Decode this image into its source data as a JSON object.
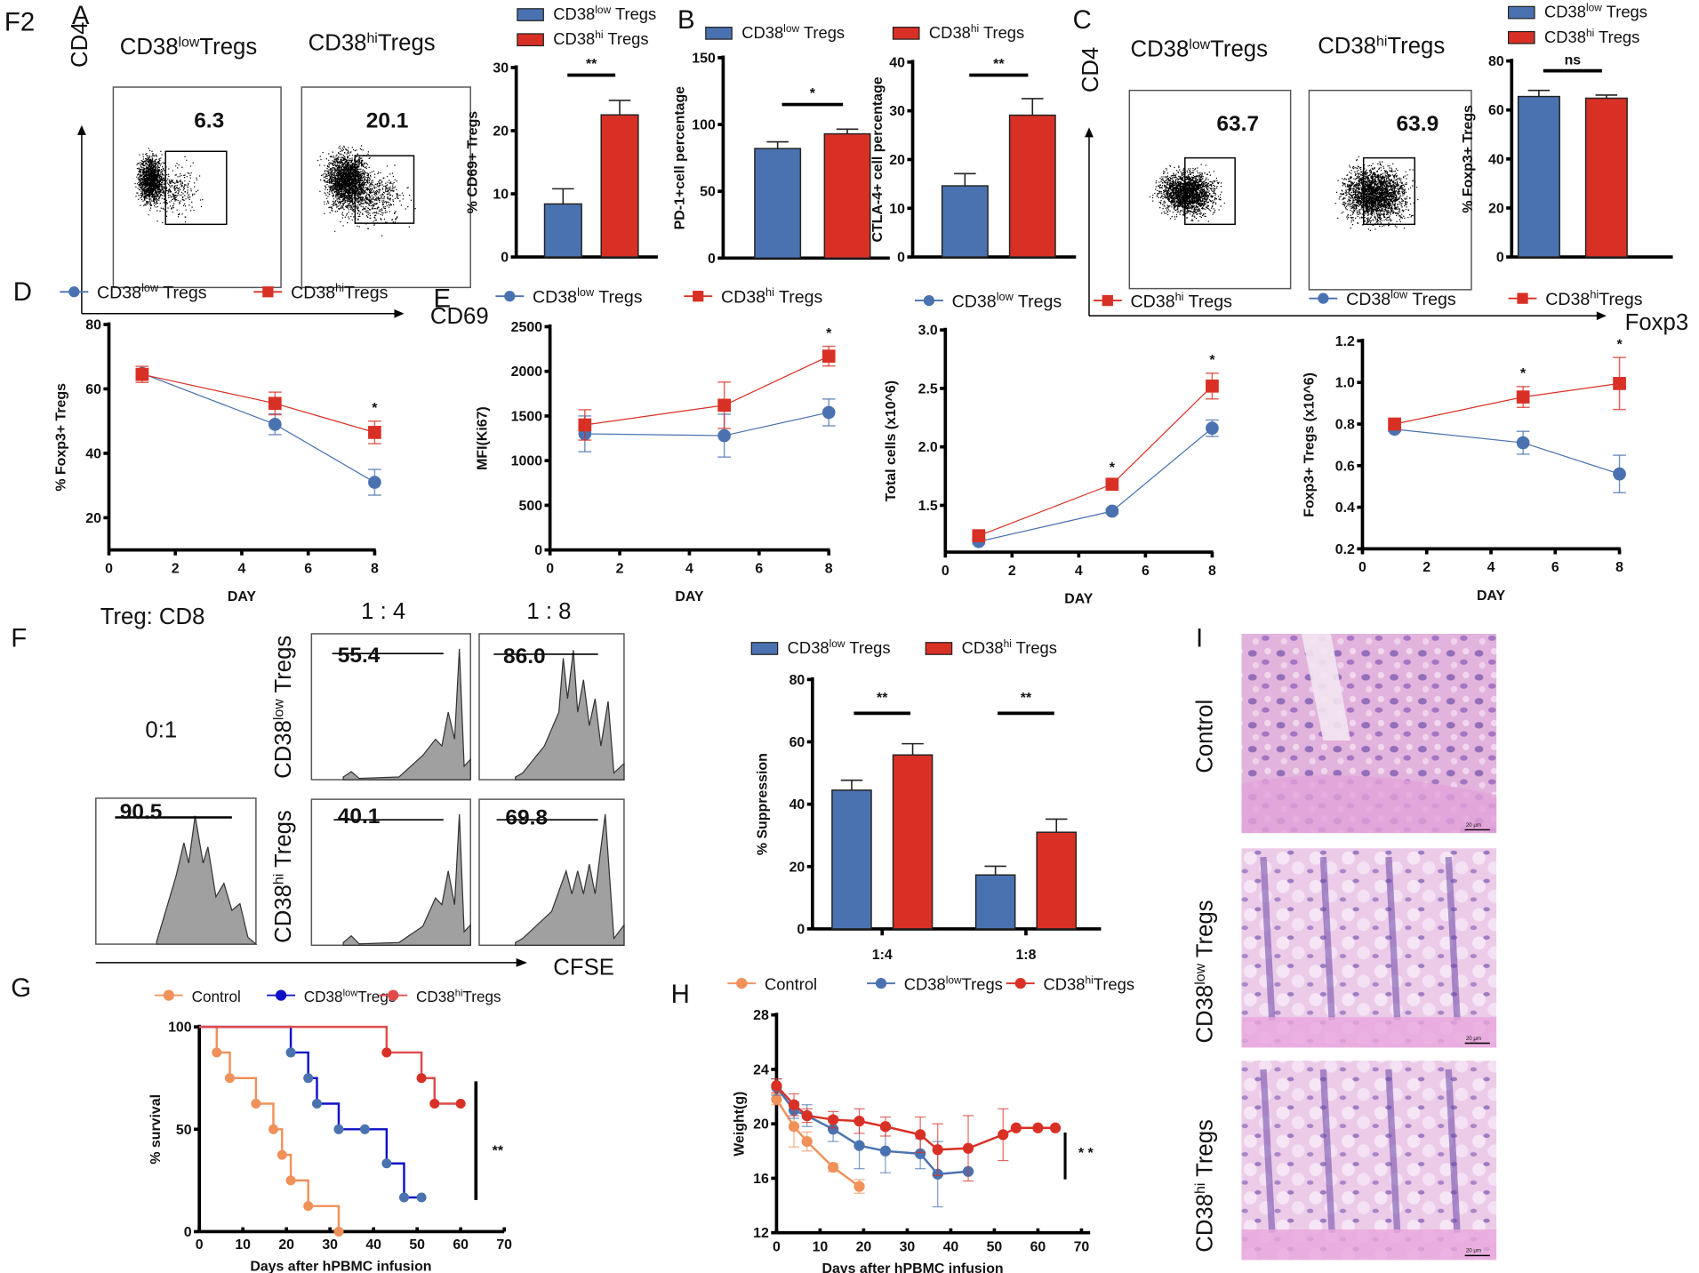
{
  "figure_label": "F2",
  "colors": {
    "low": "#4a72b0",
    "hi": "#d93025",
    "control": "#f0915a",
    "low_survival": "#1010c8",
    "hi_survival": "#e04a4a",
    "histogram_fill": "#a0a0a0",
    "he_background": "#e6b9e0",
    "he_nuclei": "#6a4aa8"
  },
  "panels": {
    "A": {
      "label": "A",
      "flow_titles": [
        "CD38lowTregs",
        "CD38hiTregs"
      ],
      "flow_title_parts": [
        {
          "base": "CD38",
          "sup": "low",
          "tail": "Tregs"
        },
        {
          "base": "CD38",
          "sup": "hi",
          "tail": "Tregs"
        }
      ],
      "gate_values": [
        "6.3",
        "20.1"
      ],
      "y_axis": "CD4",
      "x_axis": "CD69"
    },
    "B": {
      "label": "B"
    },
    "C": {
      "label": "C",
      "flow_title_parts": [
        {
          "base": "CD38",
          "sup": "low",
          "tail": "Tregs"
        },
        {
          "base": "CD38",
          "sup": "hi",
          "tail": "Tregs"
        }
      ],
      "gate_values": [
        "63.7",
        "63.9"
      ],
      "y_axis": "CD4",
      "x_axis": "Foxp3"
    },
    "D": {
      "label": "D"
    },
    "E": {
      "label": "E"
    },
    "F": {
      "label": "F",
      "ratio_header": "Treg:  CD8",
      "ratios": [
        "1 : 4",
        "1 : 8"
      ],
      "baseline_ratio": "0:1",
      "row_labels": [
        {
          "base": "CD38",
          "sup": "low",
          "tail": " Tregs"
        },
        {
          "base": "CD38",
          "sup": "hi",
          "tail": " Tregs"
        }
      ],
      "histogram_values": {
        "baseline": "90.5",
        "low_1_4": "55.4",
        "low_1_8": "86.0",
        "hi_1_4": "40.1",
        "hi_1_8": "69.8"
      },
      "x_axis": "CFSE"
    },
    "G": {
      "label": "G"
    },
    "H": {
      "label": "H"
    },
    "I": {
      "label": "I",
      "rows": [
        {
          "base": "Control",
          "sup": "",
          "tail": ""
        },
        {
          "base": "CD38",
          "sup": "low",
          "tail": " Tregs"
        },
        {
          "base": "CD38",
          "sup": "hi",
          "tail": " Tregs"
        }
      ],
      "scale_bar": "20 μm"
    }
  },
  "chart_data": [
    {
      "id": "A_cd69",
      "type": "bar",
      "categories": [
        "CD38low Tregs",
        "CD38hi Tregs"
      ],
      "legend": [
        "CD38low Tregs",
        "CD38hi Tregs"
      ],
      "values": [
        8.4,
        22.5
      ],
      "errors": [
        2.4,
        2.3
      ],
      "ylabel": "% CD69+ Tregs",
      "ylim": [
        0,
        30
      ],
      "yticks": [
        0,
        10,
        20,
        30
      ],
      "significance": "**"
    },
    {
      "id": "B_pd1",
      "type": "bar",
      "categories": [
        "CD38low Tregs",
        "CD38hi Tregs"
      ],
      "legend": [
        "CD38low Tregs",
        "CD38hi Tregs"
      ],
      "values": [
        82,
        93
      ],
      "errors": [
        5,
        3.5
      ],
      "ylabel": "PD-1+cell percentage",
      "ylim": [
        0,
        150
      ],
      "yticks": [
        0,
        50,
        100,
        150
      ],
      "significance": "*"
    },
    {
      "id": "B_ctla4",
      "type": "bar",
      "categories": [
        "CD38low Tregs",
        "CD38hi Tregs"
      ],
      "values": [
        14.6,
        29.1
      ],
      "errors": [
        2.5,
        3.4
      ],
      "ylabel": "CTLA-4+ cell percentage",
      "ylim": [
        0,
        40
      ],
      "yticks": [
        0,
        10,
        20,
        30,
        40
      ],
      "significance": "**"
    },
    {
      "id": "C_foxp3",
      "type": "bar",
      "categories": [
        "CD38low Tregs",
        "CD38hi Tregs"
      ],
      "legend": [
        "CD38low Tregs",
        "CD38hi Tregs"
      ],
      "values": [
        65.5,
        64.8
      ],
      "errors": [
        2.5,
        1.3
      ],
      "ylabel": "% Foxp3+ Tregs",
      "ylim": [
        0,
        80
      ],
      "yticks": [
        0,
        20,
        40,
        60,
        80
      ],
      "significance": "ns"
    },
    {
      "id": "D_foxp3_time",
      "type": "line",
      "x": [
        1,
        5,
        8
      ],
      "series": [
        {
          "name": "CD38low Tregs",
          "values": [
            64.8,
            49,
            31
          ],
          "errors": [
            1.5,
            3.2,
            4
          ]
        },
        {
          "name": "CD38hi Tregs",
          "values": [
            64.5,
            55.5,
            46.5
          ],
          "errors": [
            2.5,
            3.5,
            3.5
          ]
        }
      ],
      "xlabel": "DAY",
      "ylabel": "% Foxp3+ Tregs",
      "xlim": [
        0,
        8
      ],
      "ylim": [
        10,
        80
      ],
      "xticks": [
        0,
        2,
        4,
        6,
        8
      ],
      "yticks": [
        20,
        40,
        60,
        80
      ],
      "annotations": [
        {
          "x": 8,
          "text": "*"
        }
      ]
    },
    {
      "id": "E_ki67",
      "type": "line",
      "x": [
        1,
        5,
        8
      ],
      "series": [
        {
          "name": "CD38low Tregs",
          "values": [
            1300,
            1280,
            1540
          ],
          "errors": [
            200,
            240,
            150
          ]
        },
        {
          "name": "CD38hi Tregs",
          "values": [
            1400,
            1620,
            2170
          ],
          "errors": [
            170,
            260,
            110
          ]
        }
      ],
      "xlabel": "DAY",
      "ylabel": "MFI(Ki67)",
      "xlim": [
        0,
        8
      ],
      "ylim": [
        0,
        2500
      ],
      "xticks": [
        0,
        2,
        4,
        6,
        8
      ],
      "yticks": [
        0,
        500,
        1000,
        1500,
        2000,
        2500
      ],
      "annotations": [
        {
          "x": 8,
          "text": "*"
        }
      ]
    },
    {
      "id": "E_total_cells",
      "type": "line",
      "x": [
        1,
        5,
        8
      ],
      "series": [
        {
          "name": "CD38low Tregs",
          "values": [
            1.19,
            1.45,
            2.16
          ],
          "errors": [
            0.02,
            0.02,
            0.07
          ]
        },
        {
          "name": "CD38hi Tregs",
          "values": [
            1.24,
            1.68,
            2.52
          ],
          "errors": [
            0.02,
            0.03,
            0.11
          ]
        }
      ],
      "xlabel": "DAY",
      "ylabel": "Total cells (x10^6)",
      "xlim": [
        0,
        8
      ],
      "ylim": [
        1.1,
        3.0
      ],
      "xticks": [
        0,
        2,
        4,
        6,
        8
      ],
      "yticks": [
        1.5,
        2.0,
        2.5,
        3.0
      ],
      "annotations": [
        {
          "x": 5,
          "text": "*"
        },
        {
          "x": 8,
          "text": "*"
        }
      ]
    },
    {
      "id": "E_foxp3_cells",
      "type": "line",
      "x": [
        1,
        5,
        8
      ],
      "series": [
        {
          "name": "CD38low Tregs",
          "values": [
            0.775,
            0.71,
            0.56
          ],
          "errors": [
            0.01,
            0.055,
            0.09
          ]
        },
        {
          "name": "CD38hi Tregs",
          "values": [
            0.8,
            0.93,
            0.995
          ],
          "errors": [
            0.01,
            0.05,
            0.125
          ]
        }
      ],
      "xlabel": "DAY",
      "ylabel": "Foxp3+ Tregs (x10^6)",
      "xlim": [
        0,
        8
      ],
      "ylim": [
        0.2,
        1.2
      ],
      "xticks": [
        0,
        2,
        4,
        6,
        8
      ],
      "yticks": [
        0.2,
        0.4,
        0.6,
        0.8,
        1.0,
        1.2
      ],
      "annotations": [
        {
          "x": 5,
          "text": "*"
        },
        {
          "x": 8,
          "text": "*"
        }
      ]
    },
    {
      "id": "F_suppression",
      "type": "bar",
      "categories": [
        "1:4",
        "1:8"
      ],
      "series": [
        {
          "name": "CD38low Tregs",
          "values": [
            44.5,
            17.3
          ],
          "errors": [
            3.2,
            2.8
          ]
        },
        {
          "name": "CD38hi Tregs",
          "values": [
            55.8,
            31
          ],
          "errors": [
            3.6,
            4.2
          ]
        }
      ],
      "ylabel": "% Suppression",
      "ylim": [
        0,
        80
      ],
      "yticks": [
        0,
        20,
        40,
        60,
        80
      ],
      "significance": [
        "**",
        "**"
      ]
    },
    {
      "id": "G_survival",
      "type": "line",
      "step": true,
      "series": [
        {
          "name": "Control",
          "x": [
            0,
            4,
            7,
            13,
            17,
            19,
            21,
            25,
            32
          ],
          "values": [
            100,
            87.5,
            75,
            62.5,
            50,
            37.5,
            25,
            12.5,
            0
          ]
        },
        {
          "name": "CD38lowTregs",
          "x": [
            0,
            21,
            25,
            27,
            32,
            38,
            43,
            47,
            51
          ],
          "values": [
            100,
            87.5,
            75,
            62.5,
            50,
            50,
            33.3,
            16.7,
            16.7
          ]
        },
        {
          "name": "CD38hiTregs",
          "x": [
            0,
            43,
            51,
            54,
            60
          ],
          "values": [
            100,
            87.5,
            75,
            62.5,
            62.5
          ]
        }
      ],
      "xlabel": "Days after hPBMC infusion",
      "ylabel": "% survival",
      "xlim": [
        0,
        70
      ],
      "ylim": [
        0,
        100
      ],
      "xticks": [
        0,
        10,
        20,
        30,
        40,
        50,
        60,
        70
      ],
      "yticks": [
        0,
        50,
        100
      ],
      "significance": "**"
    },
    {
      "id": "H_weight",
      "type": "line",
      "series": [
        {
          "name": "Control",
          "x": [
            0,
            4,
            7,
            13,
            19
          ],
          "values": [
            21.8,
            19.8,
            18.7,
            16.8,
            15.4
          ],
          "errors": [
            0.4,
            1.5,
            0.7,
            0.3,
            0.5
          ]
        },
        {
          "name": "CD38lowTregs",
          "x": [
            0,
            4,
            7,
            13,
            19,
            25,
            33,
            37,
            44
          ],
          "values": [
            22.7,
            21.0,
            20.6,
            19.6,
            18.4,
            18.0,
            17.8,
            16.3,
            16.5
          ],
          "errors": [
            0.6,
            0.6,
            0.8,
            0.9,
            1.7,
            1.6,
            1.1,
            2.4,
            0.1
          ]
        },
        {
          "name": "CD38hiTregs",
          "x": [
            0,
            4,
            7,
            13,
            19,
            25,
            33,
            37,
            44,
            52,
            55,
            60,
            64
          ],
          "values": [
            22.8,
            21.4,
            20.6,
            20.3,
            20.2,
            19.8,
            19.2,
            18.1,
            18.2,
            19.2,
            19.7,
            19.7,
            19.7
          ],
          "errors": [
            0.5,
            0.8,
            0.5,
            0.6,
            0.9,
            0.7,
            1.3,
            1.9,
            2.4,
            1.9,
            0,
            0,
            0
          ]
        }
      ],
      "xlabel": "Days after hPBMC infusion",
      "ylabel": "Weight(g)",
      "xlim": [
        0,
        70
      ],
      "ylim": [
        12,
        28
      ],
      "xticks": [
        0,
        10,
        20,
        30,
        40,
        50,
        60,
        70
      ],
      "yticks": [
        12,
        16,
        20,
        24,
        28
      ],
      "significance": "* *"
    }
  ]
}
